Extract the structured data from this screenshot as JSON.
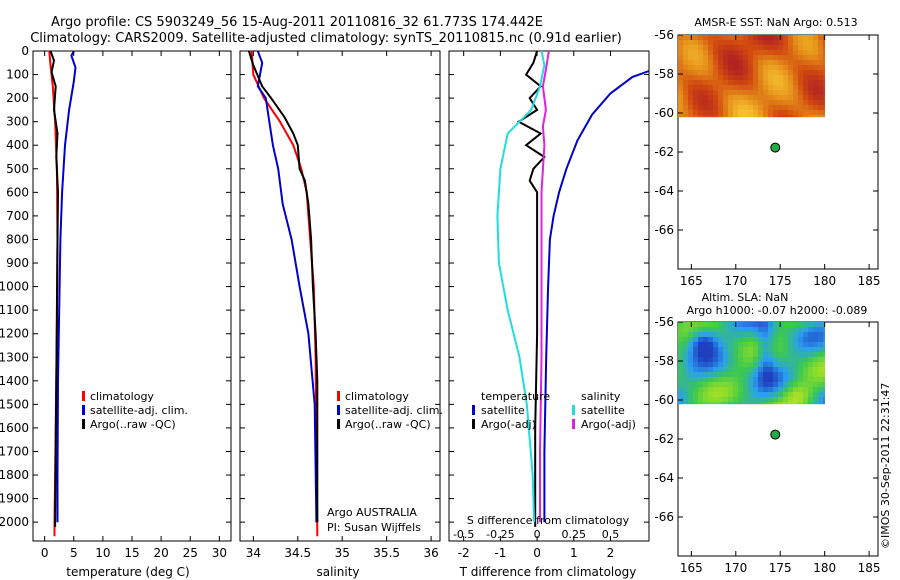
{
  "header": {
    "title_line1": "Argo profile: CS 5903249_56 15-Aug-2011 20110816_32 61.773S 174.442E",
    "title_line2": "Climatology: CARS2009. Satellite-adjusted climatology: synTS_20110815.nc (0.91d earlier)"
  },
  "colors": {
    "climatology": "#ff0000",
    "satellite": "#0000cc",
    "argo": "#000000",
    "sat_salinity": "#22dddd",
    "argo_adj_salinity": "#dd22dd",
    "float_marker": "#22aa44"
  },
  "footer": {
    "argo_source": "Argo AUSTRALIA",
    "pi": "PI: Susan Wijffels",
    "stamp": "©IMOS 30-Sep-2011 22:31:47"
  },
  "chart_data": [
    {
      "type": "line",
      "xlabel": "temperature (deg C)",
      "ylabel": "",
      "xlim": [
        -2,
        32
      ],
      "ylim": [
        2080,
        0
      ],
      "xticks": [
        "0",
        "5",
        "10",
        "15",
        "20",
        "25",
        "30"
      ],
      "yticks": [
        "0",
        "100",
        "200",
        "300",
        "400",
        "500",
        "600",
        "700",
        "800",
        "900",
        "1000",
        "1100",
        "1200",
        "1300",
        "1400",
        "1500",
        "1600",
        "1700",
        "1800",
        "1900",
        "2000"
      ],
      "legend": [
        "climatology",
        "satellite-adj. clim.",
        "Argo(..raw -QC)"
      ],
      "legend_placement": "bottom-right",
      "series": [
        {
          "name": "climatology",
          "color": "#ff0000",
          "points": [
            [
              0.8,
              0
            ],
            [
              1.0,
              60
            ],
            [
              1.4,
              150
            ],
            [
              1.8,
              300
            ],
            [
              2.1,
              500
            ],
            [
              2.2,
              800
            ],
            [
              2.1,
              1200
            ],
            [
              1.9,
              1600
            ],
            [
              1.7,
              2000
            ],
            [
              1.7,
              2060
            ]
          ]
        },
        {
          "name": "satellite-adj. clim.",
          "color": "#0000cc",
          "points": [
            [
              5.0,
              0
            ],
            [
              4.6,
              20
            ],
            [
              5.3,
              70
            ],
            [
              5.0,
              130
            ],
            [
              4.2,
              250
            ],
            [
              3.5,
              400
            ],
            [
              3.0,
              600
            ],
            [
              2.7,
              800
            ],
            [
              2.5,
              1100
            ],
            [
              2.3,
              1400
            ],
            [
              2.2,
              1800
            ],
            [
              2.2,
              2000
            ]
          ]
        },
        {
          "name": "Argo(..raw -QC)",
          "color": "#000000",
          "points": [
            [
              1.0,
              0
            ],
            [
              1.6,
              40
            ],
            [
              1.2,
              90
            ],
            [
              1.9,
              150
            ],
            [
              1.6,
              250
            ],
            [
              2.2,
              350
            ],
            [
              2.0,
              450
            ],
            [
              2.3,
              600
            ],
            [
              2.2,
              800
            ],
            [
              2.1,
              1100
            ],
            [
              2.0,
              1400
            ],
            [
              1.9,
              1700
            ],
            [
              1.8,
              2020
            ]
          ]
        }
      ]
    },
    {
      "type": "line",
      "xlabel": "salinity",
      "ylabel": "",
      "xlim": [
        33.85,
        36.1
      ],
      "ylim": [
        2080,
        0
      ],
      "xticks": [
        "34",
        "34.5",
        "35",
        "35.5",
        "36"
      ],
      "legend": [
        "climatology",
        "satellite-adj. clim.",
        "Argo(..raw -QC)"
      ],
      "legend_placement": "bottom-right",
      "annotations": [
        "Argo AUSTRALIA",
        "PI: Susan Wijffels"
      ],
      "series": [
        {
          "name": "climatology",
          "color": "#ff0000",
          "points": [
            [
              33.98,
              0
            ],
            [
              34.0,
              100
            ],
            [
              34.12,
              200
            ],
            [
              34.3,
              300
            ],
            [
              34.45,
              400
            ],
            [
              34.54,
              500
            ],
            [
              34.6,
              600
            ],
            [
              34.64,
              800
            ],
            [
              34.68,
              1000
            ],
            [
              34.7,
              1300
            ],
            [
              34.71,
              1600
            ],
            [
              34.72,
              2060
            ]
          ]
        },
        {
          "name": "satellite-adj. clim.",
          "color": "#0000cc",
          "points": [
            [
              34.05,
              0
            ],
            [
              34.1,
              50
            ],
            [
              34.05,
              150
            ],
            [
              34.14,
              200
            ],
            [
              34.18,
              300
            ],
            [
              34.22,
              400
            ],
            [
              34.28,
              500
            ],
            [
              34.33,
              650
            ],
            [
              34.43,
              800
            ],
            [
              34.52,
              1000
            ],
            [
              34.62,
              1200
            ],
            [
              34.69,
              1500
            ],
            [
              34.71,
              2000
            ]
          ]
        },
        {
          "name": "Argo(..raw -QC)",
          "color": "#000000",
          "points": [
            [
              33.95,
              0
            ],
            [
              34.0,
              60
            ],
            [
              34.1,
              150
            ],
            [
              34.2,
              200
            ],
            [
              34.35,
              280
            ],
            [
              34.45,
              350
            ],
            [
              34.5,
              400
            ],
            [
              34.52,
              500
            ],
            [
              34.58,
              550
            ],
            [
              34.62,
              650
            ],
            [
              34.65,
              800
            ],
            [
              34.67,
              1000
            ],
            [
              34.7,
              1200
            ],
            [
              34.72,
              1400
            ],
            [
              34.72,
              2000
            ]
          ]
        }
      ]
    },
    {
      "type": "line",
      "xlabel": "T difference from climatology",
      "x2label": "S difference from climatology",
      "xlim": [
        -2.4,
        3.05
      ],
      "ylim": [
        2080,
        0
      ],
      "xticks": [
        "-2",
        "-1",
        "0",
        "1",
        "2"
      ],
      "x2ticks": [
        "-0.5",
        "-0.25",
        "0",
        "0.25",
        "0.5"
      ],
      "legend": [
        "temperature",
        "satellite",
        "Argo(-adj)",
        "salinity",
        "satellite",
        "Argo(-adj)"
      ],
      "legend_placement": "bottom-right",
      "series": [
        {
          "name": "temperature satellite",
          "color": "#0000cc",
          "points": [
            [
              4.0,
              0
            ],
            [
              3.5,
              60
            ],
            [
              2.6,
              110
            ],
            [
              2.0,
              180
            ],
            [
              1.5,
              270
            ],
            [
              1.1,
              380
            ],
            [
              0.8,
              500
            ],
            [
              0.6,
              600
            ],
            [
              0.45,
              700
            ],
            [
              0.35,
              800
            ],
            [
              0.3,
              1000
            ],
            [
              0.25,
              1300
            ],
            [
              0.2,
              1700
            ],
            [
              0.2,
              2000
            ]
          ]
        },
        {
          "name": "temperature Argo(-adj)",
          "color": "#000000",
          "points": [
            [
              0.0,
              0
            ],
            [
              -0.1,
              50
            ],
            [
              -0.3,
              100
            ],
            [
              0.1,
              150
            ],
            [
              -0.2,
              200
            ],
            [
              0.0,
              250
            ],
            [
              -0.5,
              300
            ],
            [
              0.1,
              350
            ],
            [
              -0.3,
              400
            ],
            [
              0.2,
              450
            ],
            [
              -0.1,
              500
            ],
            [
              -0.2,
              550
            ],
            [
              0.0,
              600
            ],
            [
              0.0,
              800
            ],
            [
              0.0,
              1200
            ],
            [
              -0.05,
              1600
            ],
            [
              -0.05,
              2020
            ]
          ]
        },
        {
          "name": "salinity satellite",
          "color": "#22dddd",
          "points": [
            [
              0.03,
              0
            ],
            [
              0.05,
              60
            ],
            [
              0.02,
              150
            ],
            [
              -0.04,
              250
            ],
            [
              -0.2,
              350
            ],
            [
              -0.25,
              500
            ],
            [
              -0.27,
              700
            ],
            [
              -0.26,
              900
            ],
            [
              -0.2,
              1100
            ],
            [
              -0.12,
              1300
            ],
            [
              -0.07,
              1500
            ],
            [
              -0.03,
              1800
            ],
            [
              -0.02,
              2000
            ]
          ]
        },
        {
          "name": "salinity Argo(-adj)",
          "color": "#dd22dd",
          "points": [
            [
              0.08,
              0
            ],
            [
              0.06,
              80
            ],
            [
              0.04,
              150
            ],
            [
              0.06,
              250
            ],
            [
              0.04,
              320
            ],
            [
              0.05,
              400
            ],
            [
              0.03,
              600
            ],
            [
              0.03,
              900
            ],
            [
              0.03,
              1300
            ],
            [
              0.02,
              1700
            ],
            [
              0.02,
              2000
            ]
          ]
        }
      ]
    },
    {
      "type": "heatmap",
      "title": "AMSR-E SST: NaN Argo: 0.513",
      "xlim": [
        163.5,
        186
      ],
      "ylim": [
        -68,
        -56
      ],
      "xticks": [
        "165",
        "170",
        "175",
        "180",
        "185"
      ],
      "yticks": [
        "-56",
        "-58",
        "-60",
        "-62",
        "-64",
        "-66"
      ],
      "data_extent": {
        "lon": [
          163.5,
          180
        ],
        "lat": [
          -60.2,
          -56
        ]
      },
      "colormap": [
        "#b22222",
        "#d24a10",
        "#e5901a",
        "#f5c030"
      ],
      "float_position": {
        "lon": 174.442,
        "lat": -61.773
      }
    },
    {
      "type": "heatmap",
      "title": "Altim. SLA: NaN",
      "subtitle": "Argo h1000: -0.07 h2000: -0.089",
      "xlim": [
        163.5,
        186
      ],
      "ylim": [
        -68,
        -56
      ],
      "xticks": [
        "165",
        "170",
        "175",
        "180",
        "185"
      ],
      "yticks": [
        "-56",
        "-58",
        "-60",
        "-62",
        "-64",
        "-66"
      ],
      "data_extent": {
        "lon": [
          163.5,
          180
        ],
        "lat": [
          -60.2,
          -56
        ]
      },
      "colormap": [
        "#1f3fbf",
        "#2a9ff0",
        "#3ac850",
        "#8fdc2a",
        "#e8e820"
      ],
      "float_position": {
        "lon": 174.442,
        "lat": -61.773
      }
    }
  ]
}
